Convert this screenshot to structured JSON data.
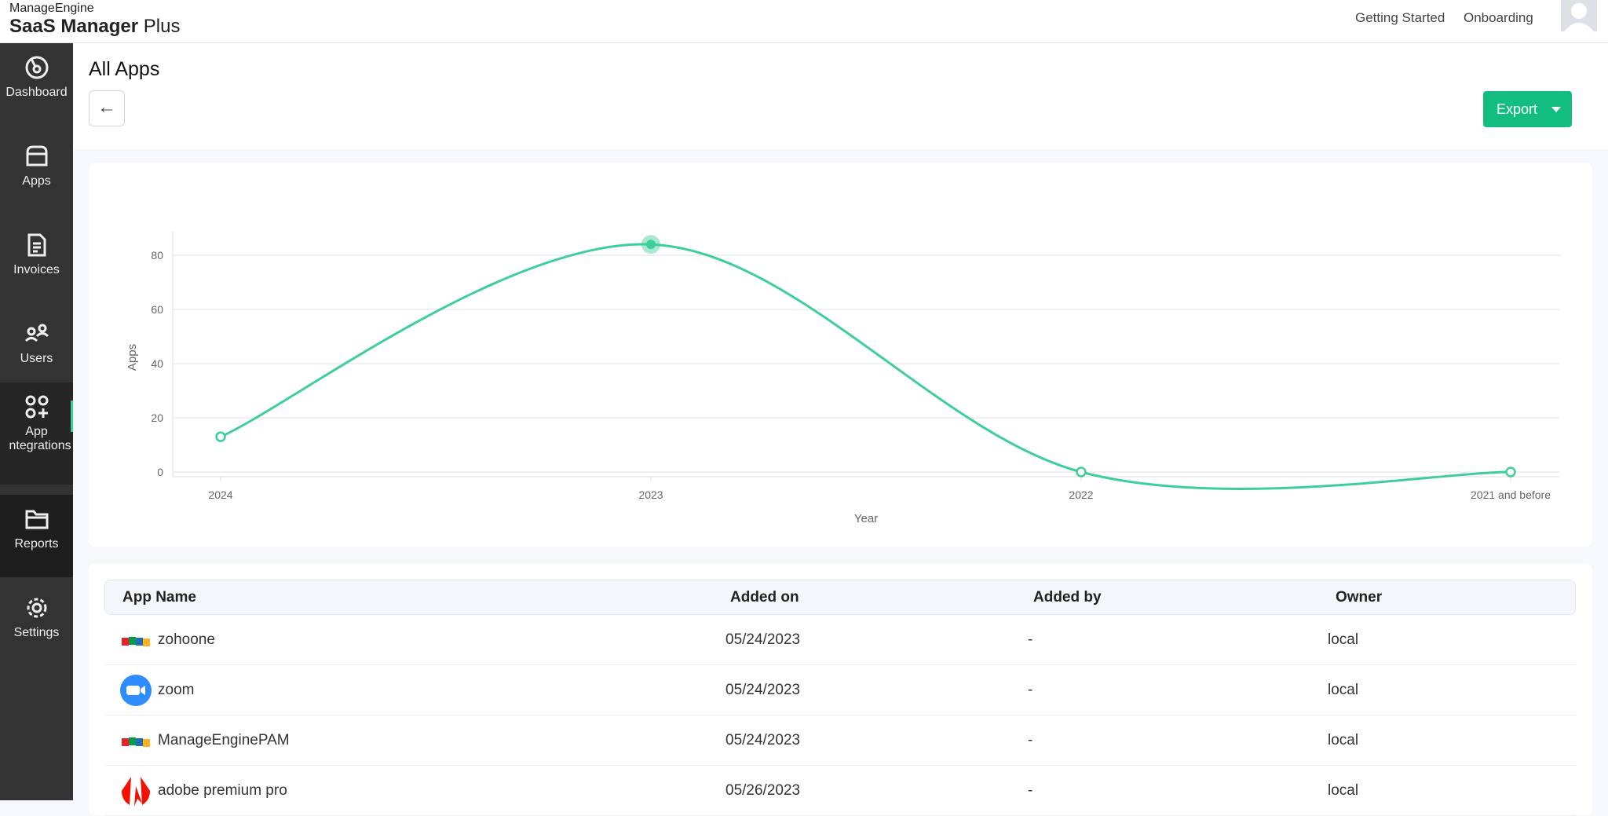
{
  "header": {
    "brand": "ManageEngine",
    "product_bold": "SaaS Manager",
    "product_light": "Plus",
    "links": [
      "Getting Started",
      "Onboarding"
    ]
  },
  "sidebar": {
    "items": [
      {
        "label": "Dashboard",
        "icon": "dashboard-icon"
      },
      {
        "label": "Apps",
        "icon": "store-icon"
      },
      {
        "label": "Invoices",
        "icon": "invoice-icon"
      },
      {
        "label": "Users",
        "icon": "users-icon"
      },
      {
        "label": "App ntegrations",
        "icon": "integrations-icon"
      },
      {
        "label": "Reports",
        "icon": "folder-icon",
        "active": true
      },
      {
        "label": "Settings",
        "icon": "gear-icon"
      }
    ]
  },
  "page": {
    "title": "All Apps",
    "back": "←",
    "export_label": "Export"
  },
  "colors": {
    "accent": "#13bd7f",
    "line": "#3ecf98",
    "sidebar": "#333333"
  },
  "chart_data": {
    "type": "line",
    "categories": [
      "2024",
      "2023",
      "2022",
      "2021 and before"
    ],
    "values": [
      13,
      84,
      0,
      0
    ],
    "xlabel": "Year",
    "ylabel": "Apps",
    "yticks": [
      "0",
      "20",
      "40",
      "60",
      "80"
    ],
    "ylim": [
      0,
      80
    ],
    "grid": true,
    "smooth": true,
    "highlighted": "2023"
  },
  "table": {
    "columns": [
      "App Name",
      "Added on",
      "Added by",
      "Owner"
    ],
    "rows": [
      {
        "name": "zohoone",
        "icon": "zoho-icon",
        "added_on": "05/24/2023",
        "added_by": "-",
        "owner": "local"
      },
      {
        "name": "zoom",
        "icon": "zoom-icon",
        "added_on": "05/24/2023",
        "added_by": "-",
        "owner": "local"
      },
      {
        "name": "ManageEnginePAM",
        "icon": "zoho-icon",
        "added_on": "05/24/2023",
        "added_by": "-",
        "owner": "local"
      },
      {
        "name": "adobe premium pro",
        "icon": "adobe-icon",
        "added_on": "05/26/2023",
        "added_by": "-",
        "owner": "local"
      }
    ]
  }
}
